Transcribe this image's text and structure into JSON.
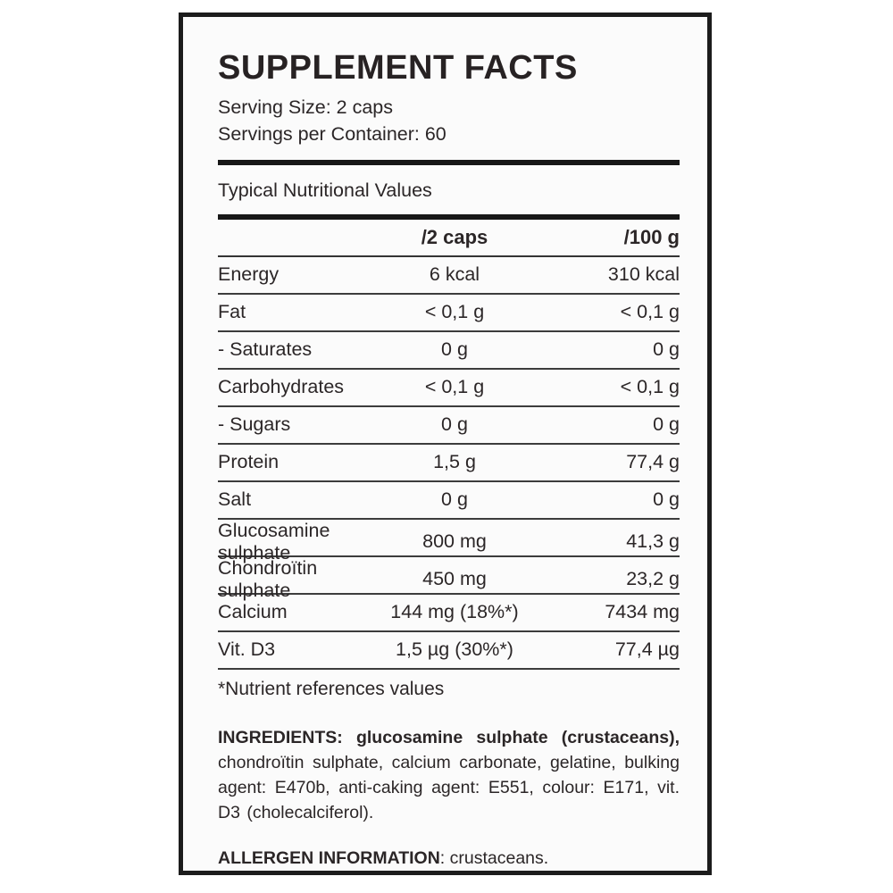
{
  "label": {
    "title": "SUPPLEMENT FACTS",
    "serving_size": "Serving Size: 2 caps",
    "servings_per_container": "Servings per Container: 60",
    "table_title": "Typical Nutritional Values",
    "table": {
      "columns": {
        "name": "",
        "per_serving": "/2 caps",
        "per_100g": "/100 g"
      },
      "rows": [
        {
          "name": "Energy",
          "per_serving": "6 kcal",
          "per_100g": "310 kcal"
        },
        {
          "name": "Fat",
          "per_serving": "< 0,1 g",
          "per_100g": "< 0,1 g"
        },
        {
          "name": "- Saturates",
          "per_serving": "0 g",
          "per_100g": "0 g"
        },
        {
          "name": "Carbohydrates",
          "per_serving": "< 0,1 g",
          "per_100g": "< 0,1 g"
        },
        {
          "name": "- Sugars",
          "per_serving": "0 g",
          "per_100g": "0 g"
        },
        {
          "name": "Protein",
          "per_serving": "1,5 g",
          "per_100g": "77,4 g"
        },
        {
          "name": "Salt",
          "per_serving": "0 g",
          "per_100g": "0 g"
        },
        {
          "name": "Glucosamine sulphate",
          "per_serving": "800 mg",
          "per_100g": "41,3 g"
        },
        {
          "name": "Chondroïtin sulphate",
          "per_serving": "450 mg",
          "per_100g": "23,2 g"
        },
        {
          "name": "Calcium",
          "per_serving": "144 mg (18%*)",
          "per_100g": "7434 mg"
        },
        {
          "name": "Vit. D3",
          "per_serving": "1,5 µg (30%*)",
          "per_100g": "77,4 µg"
        }
      ]
    },
    "footnote": "*Nutrient references values",
    "ingredients_bold": "INGREDIENTS: glucosamine sulphate (crustaceans),",
    "ingredients_rest": " chondroïtin sulphate, calcium carbonate, gelatine, bulking agent: E470b, anti-caking agent: E551, colour: E171, vit. D3 (cholecalciferol).",
    "allergen_bold": "ALLERGEN INFORMATION",
    "allergen_rest": ": crustaceans."
  }
}
